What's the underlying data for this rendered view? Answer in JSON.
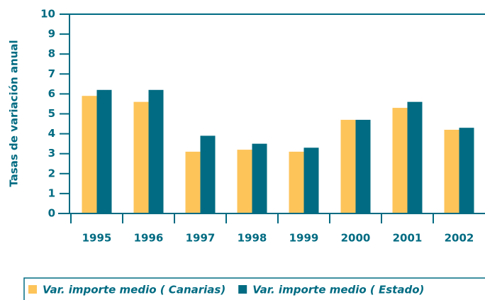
{
  "chart_data": {
    "type": "bar",
    "y_label": "Tasas de variación anual",
    "categories": [
      "1995",
      "1996",
      "1997",
      "1998",
      "1999",
      "2000",
      "2001",
      "2002"
    ],
    "series": [
      {
        "name": "Var. importe medio ( Canarias)",
        "color": "#fdc45a",
        "values": [
          5.9,
          5.6,
          3.1,
          3.2,
          3.1,
          4.7,
          5.3,
          4.2
        ]
      },
      {
        "name": "Var. importe medio ( Estado)",
        "color": "#006b82",
        "values": [
          6.2,
          6.2,
          3.9,
          3.5,
          3.3,
          4.7,
          5.6,
          4.3
        ]
      }
    ],
    "ylim": [
      0,
      10
    ],
    "yticks": [
      0,
      1,
      2,
      3,
      4,
      5,
      6,
      7,
      8,
      9,
      10
    ],
    "grid": false,
    "legend": "bottom"
  }
}
